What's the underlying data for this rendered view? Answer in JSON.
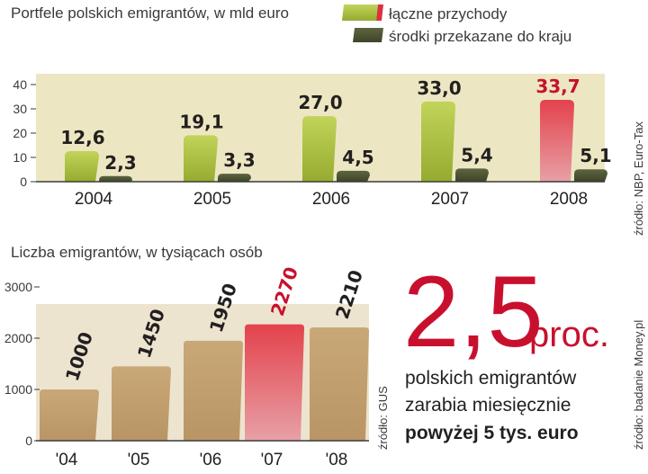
{
  "chart_data": [
    {
      "type": "bar",
      "title": "Portfele polskich emigrantów, w mld euro",
      "categories": [
        "2004",
        "2005",
        "2006",
        "2007",
        "2008"
      ],
      "series": [
        {
          "name": "łączne przychody",
          "values": [
            12.6,
            19.1,
            27.0,
            33.0,
            33.7
          ],
          "labels": [
            "12,6",
            "19,1",
            "27,0",
            "33,0",
            "33,7"
          ]
        },
        {
          "name": "środki przekazane do kraju",
          "values": [
            2.3,
            3.3,
            4.5,
            5.4,
            5.1
          ],
          "labels": [
            "2,3",
            "3,3",
            "4,5",
            "5,4",
            "5,1"
          ]
        }
      ],
      "yticks": [
        "0",
        "10",
        "20",
        "30",
        "40"
      ],
      "ylim": [
        0,
        40
      ],
      "highlight": "2008",
      "source": "źródło: NBP, Euro-Tax",
      "grid": false,
      "legend": "top-right"
    },
    {
      "type": "bar",
      "title": "Liczba emigrantów, w tysiącach  osób",
      "categories": [
        "'04",
        "'05",
        "'06",
        "'07",
        "'08"
      ],
      "values": [
        1000,
        1450,
        1950,
        2270,
        2210
      ],
      "labels": [
        "1000",
        "1450",
        "1950",
        "2270",
        "2210"
      ],
      "yticks": [
        "0",
        "1000",
        "2000",
        "3000"
      ],
      "ylim": [
        0,
        3000
      ],
      "highlight": "'07",
      "source": "źródło: GUS",
      "grid": false
    }
  ],
  "fact": {
    "big_number": "2,5",
    "unit": "proc.",
    "line1": "polskich emigrantów",
    "line2": "zarabia miesięcznie",
    "line3": "powyżej 5 tys. euro",
    "source": "źródło: badanie Money.pl"
  },
  "colors": {
    "green_light": "#a8bf3c",
    "green_dark": "#4a5231",
    "red": "#d8323f",
    "tan": "#c4a171",
    "panel_bg": "#ece7c2",
    "panel_bg2": "#ede4cf",
    "highlight_text": "#c8102e"
  }
}
